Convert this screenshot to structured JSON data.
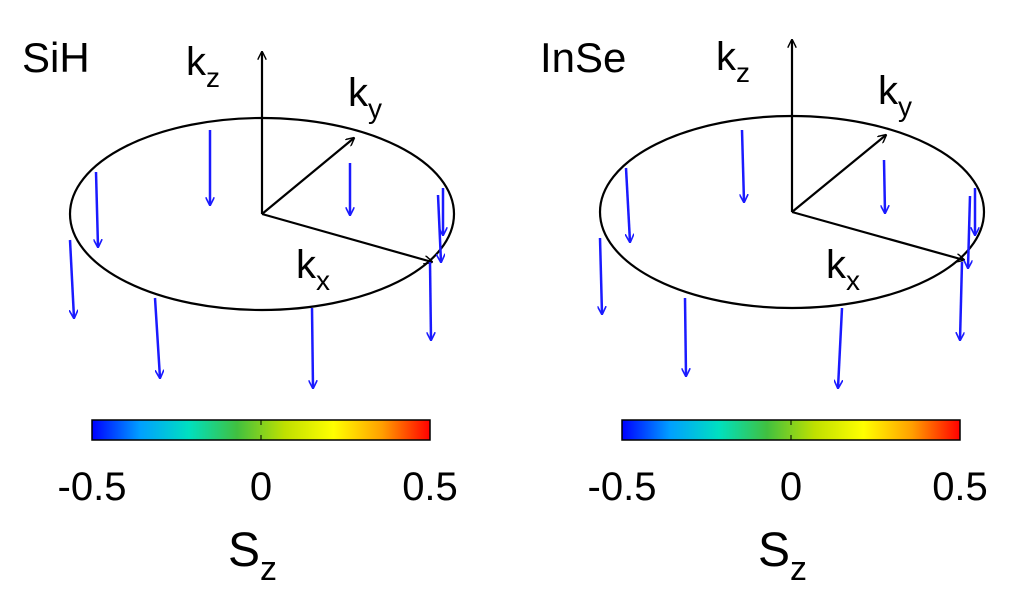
{
  "colors": {
    "axis": "#000000",
    "ellipse": "#000000",
    "spin_arrow": "#1a1aff",
    "colorbar_stops": [
      "#0000ff",
      "#00a0ff",
      "#00e0c0",
      "#40c040",
      "#c0e000",
      "#ffff00",
      "#ffa000",
      "#ff0000"
    ]
  },
  "panels": [
    {
      "title": "SiH",
      "axes": {
        "kz": {
          "base": "k",
          "sub": "z"
        },
        "ky": {
          "base": "k",
          "sub": "y"
        },
        "kx": {
          "base": "k",
          "sub": "x"
        }
      },
      "spin_arrows_Sz": [
        -0.5,
        -0.5,
        -0.5,
        -0.5,
        -0.5,
        -0.5,
        -0.5,
        -0.5,
        -0.5
      ],
      "colorbar": {
        "min": -0.5,
        "max": 0.5,
        "ticks": [
          "-0.5",
          "0",
          "0.5"
        ],
        "label_base": "S",
        "label_sub": "z"
      }
    },
    {
      "title": "InSe",
      "axes": {
        "kz": {
          "base": "k",
          "sub": "z"
        },
        "ky": {
          "base": "k",
          "sub": "y"
        },
        "kx": {
          "base": "k",
          "sub": "x"
        }
      },
      "spin_arrows_Sz": [
        -0.5,
        -0.5,
        -0.5,
        -0.5,
        -0.5,
        -0.5,
        -0.5,
        -0.5,
        -0.5
      ],
      "colorbar": {
        "min": -0.5,
        "max": 0.5,
        "ticks": [
          "-0.5",
          "0",
          "0.5"
        ],
        "label_base": "S",
        "label_sub": "z"
      }
    }
  ]
}
